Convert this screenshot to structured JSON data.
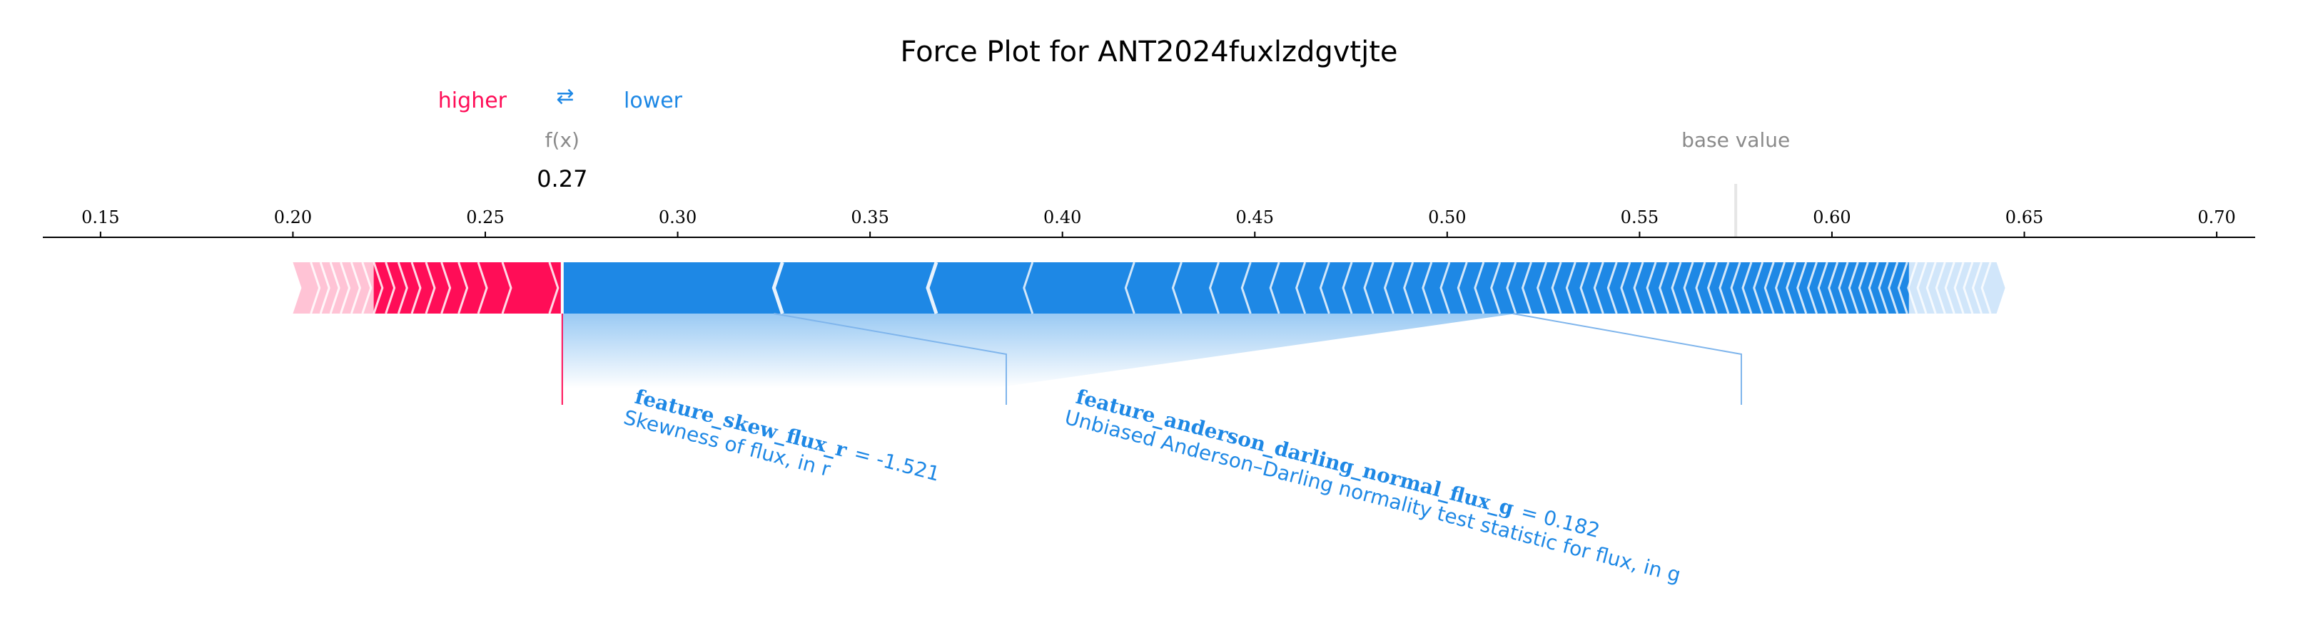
{
  "chart_data": {
    "type": "force_plot",
    "title": "Force Plot for ANT2024fuxlzdgvtjte",
    "legend": {
      "higher_label": "higher",
      "lower_label": "lower",
      "arrows_symbol": "⇄"
    },
    "fx_label": "f(x)",
    "fx_value": 0.27,
    "fx_value_text": "0.27",
    "base_value_label": "base value",
    "base_value": 0.575,
    "xlim": [
      0.135,
      0.71
    ],
    "ticks": [
      {
        "value": 0.15,
        "label": "0.15"
      },
      {
        "value": 0.2,
        "label": "0.20"
      },
      {
        "value": 0.25,
        "label": "0.25"
      },
      {
        "value": 0.3,
        "label": "0.30"
      },
      {
        "value": 0.35,
        "label": "0.35"
      },
      {
        "value": 0.4,
        "label": "0.40"
      },
      {
        "value": 0.45,
        "label": "0.45"
      },
      {
        "value": 0.5,
        "label": "0.50"
      },
      {
        "value": 0.55,
        "label": "0.55"
      },
      {
        "value": 0.6,
        "label": "0.60"
      },
      {
        "value": 0.65,
        "label": "0.65"
      },
      {
        "value": 0.7,
        "label": "0.70"
      }
    ],
    "positive_range": [
      0.2,
      0.27
    ],
    "negative_range": [
      0.27,
      0.645
    ],
    "labeled_features": [
      {
        "name": "feature_skew_flux_r",
        "value_text": "= -1.521",
        "description": "Skewness of flux, in r",
        "range": [
          0.27,
          0.325
        ]
      },
      {
        "name": "feature_anderson_darling_normal_flux_g",
        "value_text": "= 0.182",
        "description": "Unbiased Anderson–Darling normality test statistic for flux, in g",
        "range": [
          0.325,
          0.518
        ]
      }
    ],
    "colors": {
      "positive": "#ff0d57",
      "positive_light": "#ffc3d5",
      "negative": "#1e88e5",
      "negative_light": "#d1e6fa",
      "base_line": "#e6e6e6",
      "gray_text": "#8a8a8a"
    }
  }
}
